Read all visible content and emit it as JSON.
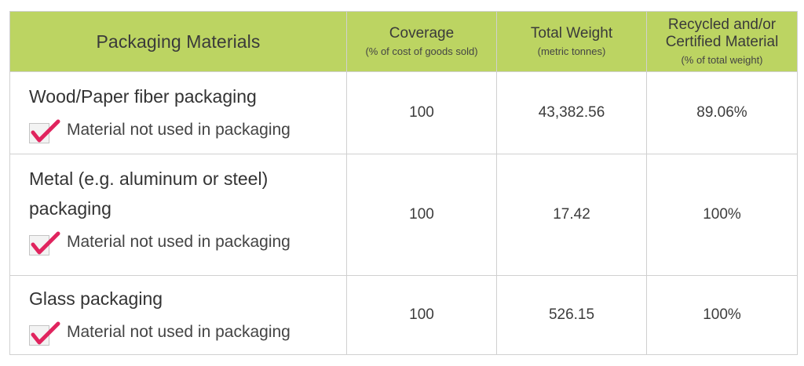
{
  "header": {
    "materials": "Packaging Materials",
    "coverage": {
      "main": "Coverage",
      "sub": "(% of cost of goods sold)"
    },
    "weight": {
      "main": "Total Weight",
      "sub": "(metric tonnes)"
    },
    "recycled": {
      "main1": "Recycled and/or",
      "main2": "Certified Material",
      "sub": "(% of total weight)"
    }
  },
  "rows": [
    {
      "name": "Wood/Paper fiber packaging",
      "check_label": "Material not used in packaging",
      "coverage": "100",
      "weight": "43,382.56",
      "recycled": "89.06%"
    },
    {
      "name_line1": "Metal (e.g. aluminum or steel)",
      "name_line2": "packaging",
      "check_label": "Material not used in packaging",
      "coverage": "100",
      "weight": "17.42",
      "recycled": "100%"
    },
    {
      "name": "Glass packaging",
      "check_label": "Material not used in packaging",
      "coverage": "100",
      "weight": "526.15",
      "recycled": "100%"
    }
  ],
  "colors": {
    "header_bg": "#bcd462",
    "check_mark": "#e0245e",
    "grid": "#d0d0d0"
  },
  "icons": {
    "checkbox": "checkbox-checked-icon"
  }
}
